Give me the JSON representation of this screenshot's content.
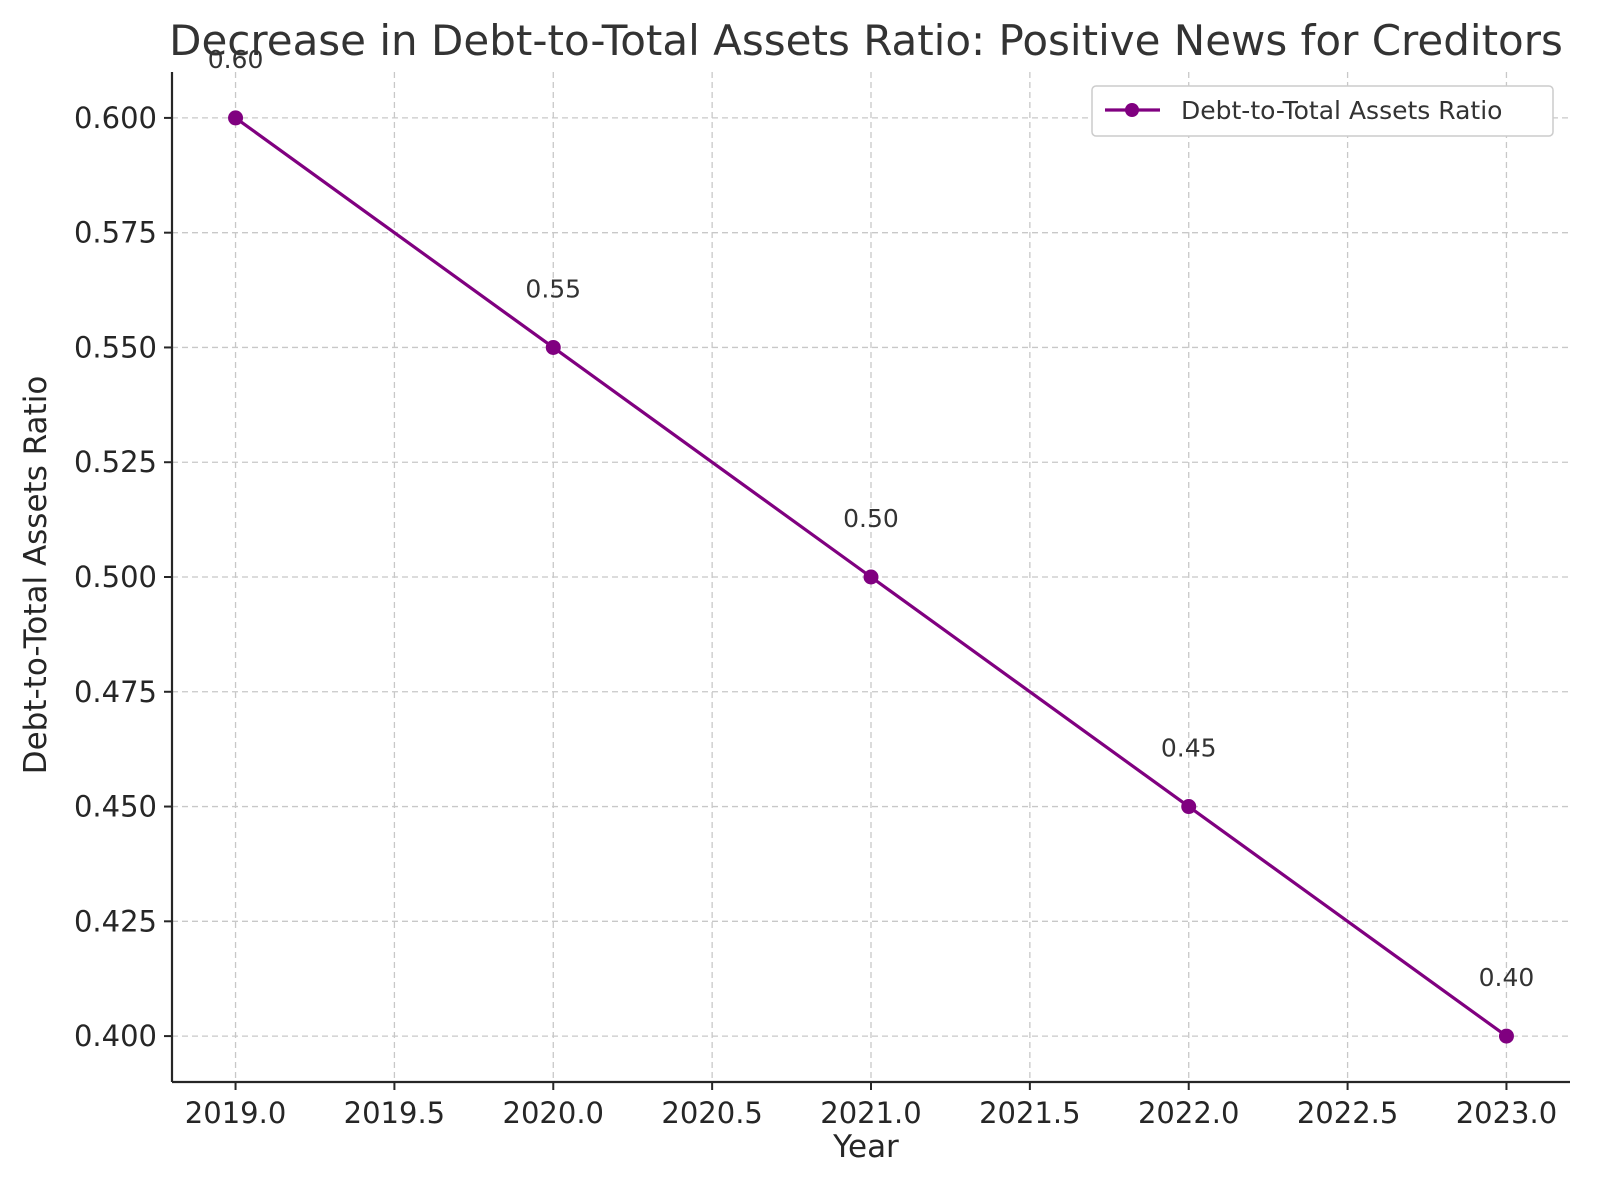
{
  "chart_data": {
    "type": "line",
    "title": "Decrease in Debt-to-Total Assets Ratio: Positive News for Creditors",
    "xlabel": "Year",
    "ylabel": "Debt-to-Total Assets Ratio",
    "xlim": [
      2018.8,
      2023.2
    ],
    "ylim": [
      0.39,
      0.61
    ],
    "xticks": [
      2019.0,
      2019.5,
      2020.0,
      2020.5,
      2021.0,
      2021.5,
      2022.0,
      2022.5,
      2023.0
    ],
    "xtick_labels": [
      "2019.0",
      "2019.5",
      "2020.0",
      "2020.5",
      "2021.0",
      "2021.5",
      "2022.0",
      "2022.5",
      "2023.0"
    ],
    "yticks": [
      0.4,
      0.425,
      0.45,
      0.475,
      0.5,
      0.525,
      0.55,
      0.575,
      0.6
    ],
    "ytick_labels": [
      "0.400",
      "0.425",
      "0.450",
      "0.475",
      "0.500",
      "0.525",
      "0.550",
      "0.575",
      "0.600"
    ],
    "grid": true,
    "legend_position": "top-right",
    "series": [
      {
        "name": "Debt-to-Total Assets Ratio",
        "color": "#800080",
        "marker": "circle",
        "x": [
          2019,
          2020,
          2021,
          2022,
          2023
        ],
        "y": [
          0.6,
          0.55,
          0.5,
          0.45,
          0.4
        ],
        "data_labels": [
          "0.60",
          "0.55",
          "0.50",
          "0.45",
          "0.40"
        ]
      }
    ]
  }
}
